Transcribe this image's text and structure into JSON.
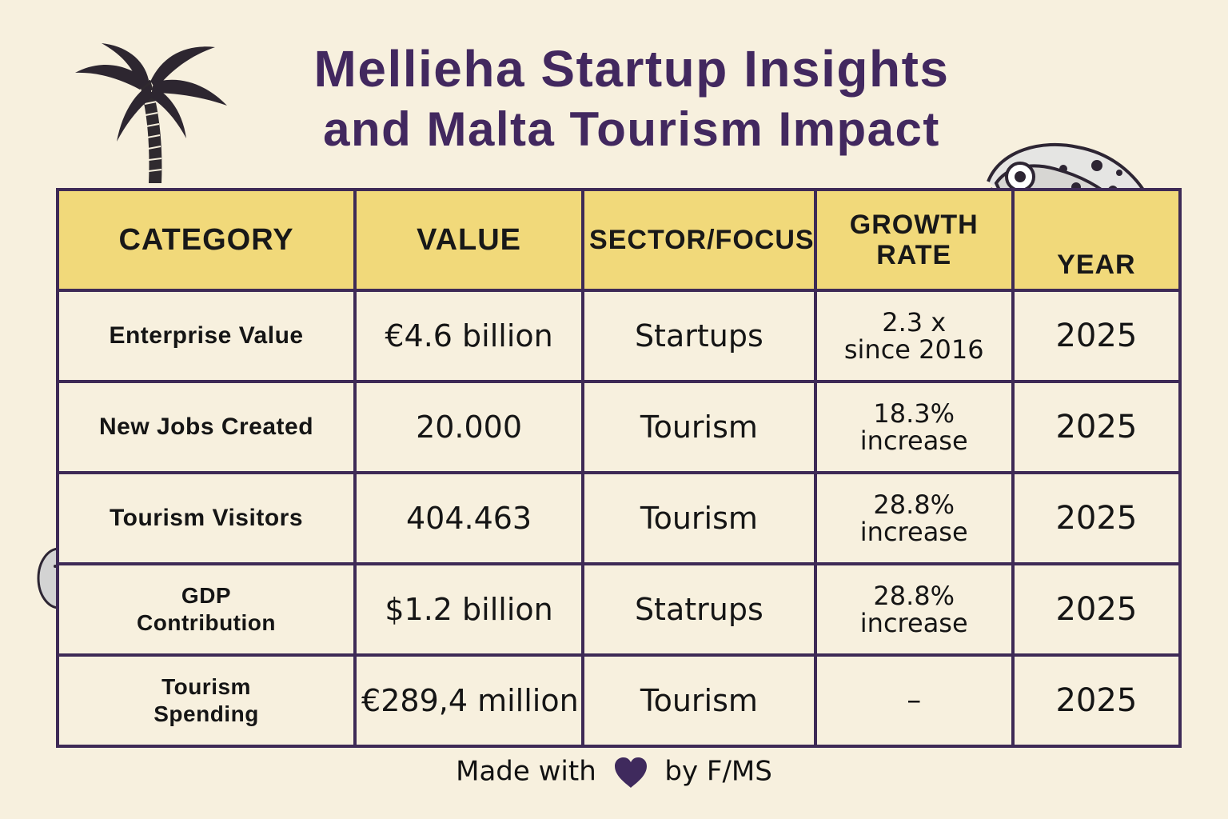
{
  "title": {
    "line1": "Mellieha Startup Insights",
    "line2": "and Malta Tourism Impact"
  },
  "table": {
    "headers": {
      "category": "CATEGORY",
      "value": "VALUE",
      "sector": "SECTOR/FOCUS",
      "growth_line1": "GROWTH",
      "growth_line2": "RATE",
      "year": "YEAR"
    },
    "rows": [
      {
        "category": "Enterprise Value",
        "value": "€4.6 billion",
        "sector": "Startups",
        "growth_line1": "2.3 x",
        "growth_line2": "since 2016",
        "year": "2025"
      },
      {
        "category": "New Jobs Created",
        "value": "20.000",
        "sector": "Tourism",
        "growth_line1": "18.3%",
        "growth_line2": "increase",
        "year": "2025"
      },
      {
        "category": "Tourism Visitors",
        "value": "404.463",
        "sector": "Tourism",
        "growth_line1": "28.8%",
        "growth_line2": "increase",
        "year": "2025"
      },
      {
        "category_line1": "GDP",
        "category_line2": "Contribution",
        "value": "$1.2 billion",
        "sector": "Statrups",
        "growth_line1": "28.8%",
        "growth_line2": "increase",
        "year": "2025"
      },
      {
        "category_line1": "Tourism",
        "category_line2": "Spending",
        "value": "€289,4 million",
        "sector": "Tourism",
        "growth": "–",
        "year": "2025"
      }
    ]
  },
  "footer": {
    "made_with": "Made with",
    "by": "by F/MS"
  },
  "colors": {
    "background": "#f7f0de",
    "header_fill": "#f1d97a",
    "border": "#3e2a56",
    "title": "#42285f",
    "heart": "#3f2a5d"
  },
  "icons": {
    "palm": "palm-tree-icon",
    "chameleon": "chameleon-icon",
    "cactus": "cactus-icon",
    "heart": "heart-icon"
  },
  "chart_data": {
    "type": "table",
    "columns": [
      "CATEGORY",
      "VALUE",
      "SECTOR/FOCUS",
      "GROWTH RATE",
      "YEAR"
    ],
    "rows": [
      [
        "Enterprise Value",
        "€4.6 billion",
        "Startups",
        "2.3 x since 2016",
        "2025"
      ],
      [
        "New Jobs Created",
        "20.000",
        "Tourism",
        "18.3% increase",
        "2025"
      ],
      [
        "Tourism Visitors",
        "404.463",
        "Tourism",
        "28.8% increase",
        "2025"
      ],
      [
        "GDP Contribution",
        "$1.2 billion",
        "Statrups",
        "28.8% increase",
        "2025"
      ],
      [
        "Tourism Spending",
        "€289,4 million",
        "Tourism",
        "–",
        "2025"
      ]
    ]
  }
}
